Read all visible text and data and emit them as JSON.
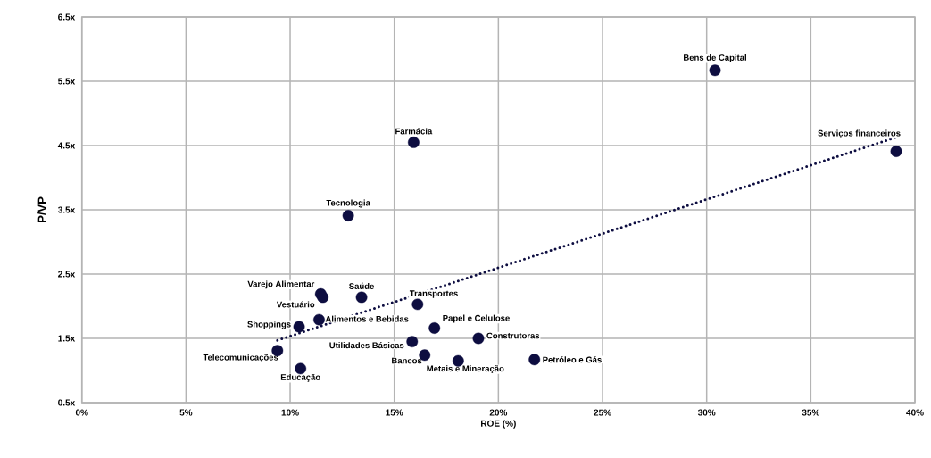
{
  "chart_data": {
    "type": "scatter",
    "xlabel": "ROE (%)",
    "ylabel": "P/VP",
    "grid": true,
    "xlim": [
      0,
      40
    ],
    "ylim": [
      0.5,
      6.5
    ],
    "xticks": [
      {
        "value": 0,
        "label": "0%"
      },
      {
        "value": 5,
        "label": "5%"
      },
      {
        "value": 10,
        "label": "10%"
      },
      {
        "value": 15,
        "label": "15%"
      },
      {
        "value": 20,
        "label": "20%"
      },
      {
        "value": 25,
        "label": "25%"
      },
      {
        "value": 30,
        "label": "30%"
      },
      {
        "value": 35,
        "label": "35%"
      },
      {
        "value": 40,
        "label": "40%"
      }
    ],
    "yticks": [
      {
        "value": 0.5,
        "label": "0.5x"
      },
      {
        "value": 1.5,
        "label": "1.5x"
      },
      {
        "value": 2.5,
        "label": "2.5x"
      },
      {
        "value": 3.5,
        "label": "3.5x"
      },
      {
        "value": 4.5,
        "label": "4.5x"
      },
      {
        "value": 5.5,
        "label": "5.5x"
      },
      {
        "value": 6.5,
        "label": "6.5x"
      }
    ],
    "series": [
      {
        "type": "scatter",
        "color": "#0d0d40",
        "marker": "circle",
        "x": [
          30.4,
          39.1,
          15.93,
          12.79,
          11.47,
          11.57,
          13.43,
          16.12,
          11.39,
          10.43,
          16.93,
          19.04,
          15.86,
          9.39,
          16.46,
          18.07,
          21.73,
          10.5
        ],
        "values": [
          5.67,
          4.41,
          4.55,
          3.41,
          2.19,
          2.14,
          2.14,
          2.03,
          1.79,
          1.68,
          1.66,
          1.5,
          1.45,
          1.31,
          1.24,
          1.15,
          1.17,
          1.03
        ]
      },
      {
        "type": "line",
        "color": "#0d0d40",
        "line_style": "dotted",
        "marker": "none",
        "x": [
          9.39,
          39.1
        ],
        "values": [
          1.47,
          4.63
        ]
      }
    ],
    "annotations": [
      {
        "text": "Bens de Capital",
        "x": 30.4,
        "y": 5.67
      },
      {
        "text": "Serviços financeiros",
        "x": 39.1,
        "y": 4.41
      },
      {
        "text": "Farmácia",
        "x": 15.93,
        "y": 4.55
      },
      {
        "text": "Tecnologia",
        "x": 12.79,
        "y": 3.41
      },
      {
        "text": "Varejo Alimentar",
        "x": 11.47,
        "y": 2.19
      },
      {
        "text": "Vestuário",
        "x": 11.57,
        "y": 2.14
      },
      {
        "text": "Saúde",
        "x": 13.43,
        "y": 2.14
      },
      {
        "text": "Transportes",
        "x": 16.12,
        "y": 2.03
      },
      {
        "text": "Alimentos e Bebidas",
        "x": 11.39,
        "y": 1.79
      },
      {
        "text": "Shoppings",
        "x": 10.43,
        "y": 1.68
      },
      {
        "text": "Papel e Celulose",
        "x": 16.93,
        "y": 1.66
      },
      {
        "text": "Construtoras",
        "x": 19.04,
        "y": 1.5
      },
      {
        "text": "Utilidades Básicas",
        "x": 15.86,
        "y": 1.45
      },
      {
        "text": "Telecomunicações",
        "x": 9.39,
        "y": 1.31
      },
      {
        "text": "Bancos",
        "x": 16.46,
        "y": 1.24
      },
      {
        "text": "Metais e Mineração",
        "x": 18.07,
        "y": 1.15
      },
      {
        "text": "Petróleo e Gás",
        "x": 21.73,
        "y": 1.17
      },
      {
        "text": "Educação",
        "x": 10.5,
        "y": 1.03
      }
    ]
  }
}
